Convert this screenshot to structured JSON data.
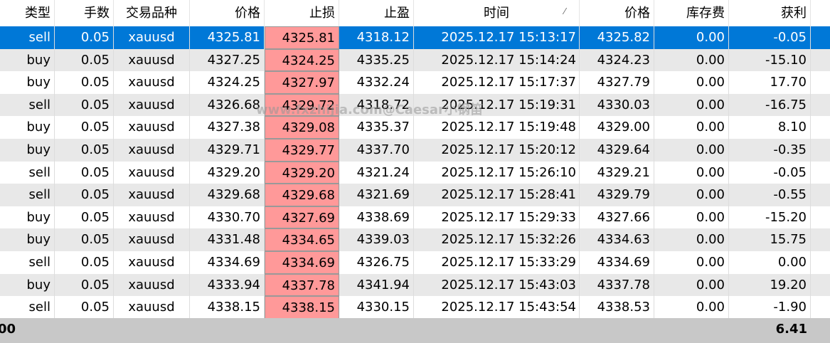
{
  "table": {
    "header": [
      "类型",
      "手数",
      "交易品种",
      "价格",
      "止损",
      "止盈",
      "时间",
      "价格",
      "库存费",
      "获利"
    ],
    "rows": [
      [
        "sell",
        "0.05",
        "xauusd",
        "4325.81",
        "4325.81",
        "4318.12",
        "2025.12.17 15:13:17",
        "4325.82",
        "0.00",
        "-0.05"
      ],
      [
        "buy",
        "0.05",
        "xauusd",
        "4327.25",
        "4324.25",
        "4335.25",
        "2025.12.17 15:14:24",
        "4324.23",
        "0.00",
        "-15.10"
      ],
      [
        "buy",
        "0.05",
        "xauusd",
        "4324.25",
        "4327.97",
        "4332.24",
        "2025.12.17 15:17:37",
        "4327.79",
        "0.00",
        "17.70"
      ],
      [
        "sell",
        "0.05",
        "xauusd",
        "4326.68",
        "4329.72",
        "4318.72",
        "2025.12.17 15:19:31",
        "4330.03",
        "0.00",
        "-16.75"
      ],
      [
        "buy",
        "0.05",
        "xauusd",
        "4327.38",
        "4329.08",
        "4335.37",
        "2025.12.17 15:19:48",
        "4329.00",
        "0.00",
        "8.10"
      ],
      [
        "buy",
        "0.05",
        "xauusd",
        "4329.71",
        "4329.77",
        "4337.70",
        "2025.12.17 15:20:12",
        "4329.64",
        "0.00",
        "-0.35"
      ],
      [
        "sell",
        "0.05",
        "xauusd",
        "4329.20",
        "4329.20",
        "4321.24",
        "2025.12.17 15:26:10",
        "4329.21",
        "0.00",
        "-0.05"
      ],
      [
        "sell",
        "0.05",
        "xauusd",
        "4329.68",
        "4329.68",
        "4321.69",
        "2025.12.17 15:28:41",
        "4329.79",
        "0.00",
        "-0.55"
      ],
      [
        "buy",
        "0.05",
        "xauusd",
        "4330.70",
        "4327.69",
        "4338.69",
        "2025.12.17 15:29:33",
        "4327.66",
        "0.00",
        "-15.20"
      ],
      [
        "buy",
        "0.05",
        "xauusd",
        "4331.48",
        "4334.65",
        "4339.03",
        "2025.12.17 15:32:26",
        "4334.63",
        "0.00",
        "15.75"
      ],
      [
        "sell",
        "0.05",
        "xauusd",
        "4334.69",
        "4334.69",
        "4326.75",
        "2025.12.17 15:33:29",
        "4334.69",
        "0.00",
        "0.00"
      ],
      [
        "buy",
        "0.05",
        "xauusd",
        "4333.94",
        "4337.78",
        "4341.94",
        "2025.12.17 15:43:03",
        "4337.78",
        "0.00",
        "19.20"
      ],
      [
        "sell",
        "0.05",
        "xauusd",
        "4338.15",
        "4338.15",
        "4330.15",
        "2025.12.17 15:43:54",
        "4338.53",
        "0.00",
        "-1.90"
      ]
    ],
    "footer": {
      "balance": "00",
      "total_profit": "6.41"
    },
    "watermark": "www.fxzhijia.com@Caesar小钢笛"
  }
}
